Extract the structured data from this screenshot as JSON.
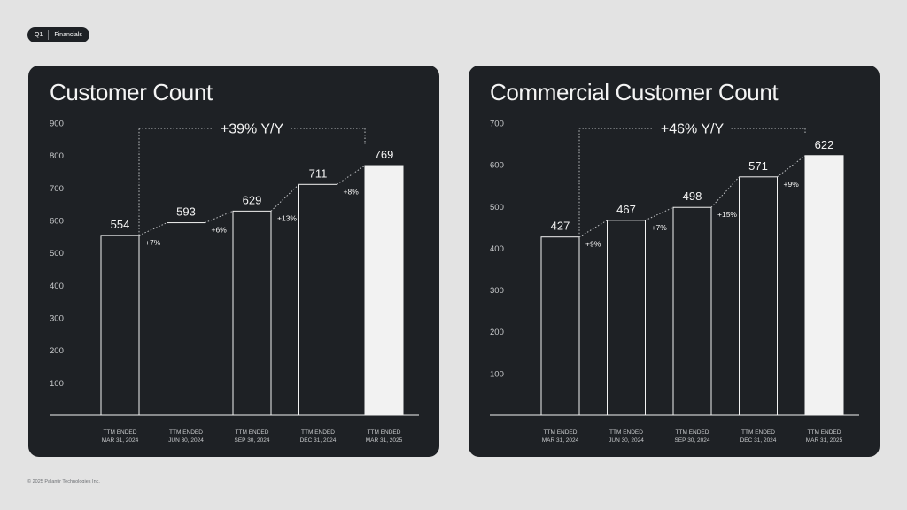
{
  "header": {
    "quarter": "Q1",
    "section": "Financials"
  },
  "footer": {
    "copyright": "© 2025 Palantir Technologies Inc."
  },
  "chart_data": [
    {
      "type": "bar",
      "title": "Customer Count",
      "categories": [
        [
          "TTM ENDED",
          "MAR 31, 2024"
        ],
        [
          "TTM ENDED",
          "JUN 30, 2024"
        ],
        [
          "TTM ENDED",
          "SEP 30, 2024"
        ],
        [
          "TTM ENDED",
          "DEC 31, 2024"
        ],
        [
          "TTM ENDED",
          "MAR 31, 2025"
        ]
      ],
      "values": [
        554,
        593,
        629,
        711,
        769
      ],
      "growth_labels": [
        "+7%",
        "+6%",
        "+13%",
        "+8%"
      ],
      "yoy_label": "+39% Y/Y",
      "ylim": [
        0,
        900
      ],
      "yticks": [
        100,
        200,
        300,
        400,
        500,
        600,
        700,
        800,
        900
      ],
      "highlight_index": 4,
      "grid": false
    },
    {
      "type": "bar",
      "title": "Commercial Customer Count",
      "categories": [
        [
          "TTM ENDED",
          "MAR 31, 2024"
        ],
        [
          "TTM ENDED",
          "JUN 30, 2024"
        ],
        [
          "TTM ENDED",
          "SEP 30, 2024"
        ],
        [
          "TTM ENDED",
          "DEC 31, 2024"
        ],
        [
          "TTM ENDED",
          "MAR 31, 2025"
        ]
      ],
      "values": [
        427,
        467,
        498,
        571,
        622
      ],
      "growth_labels": [
        "+9%",
        "+7%",
        "+15%",
        "+9%"
      ],
      "yoy_label": "+46% Y/Y",
      "ylim": [
        0,
        700
      ],
      "yticks": [
        100,
        200,
        300,
        400,
        500,
        600,
        700
      ],
      "highlight_index": 4,
      "grid": false
    }
  ],
  "colors": {
    "background": "#e3e3e3",
    "panel": "#1e2125",
    "bar_outline": "#f2f2f2",
    "bar_highlight": "#f2f2f2",
    "text": "#f4f4f4",
    "muted_text": "#c9cbcd"
  }
}
